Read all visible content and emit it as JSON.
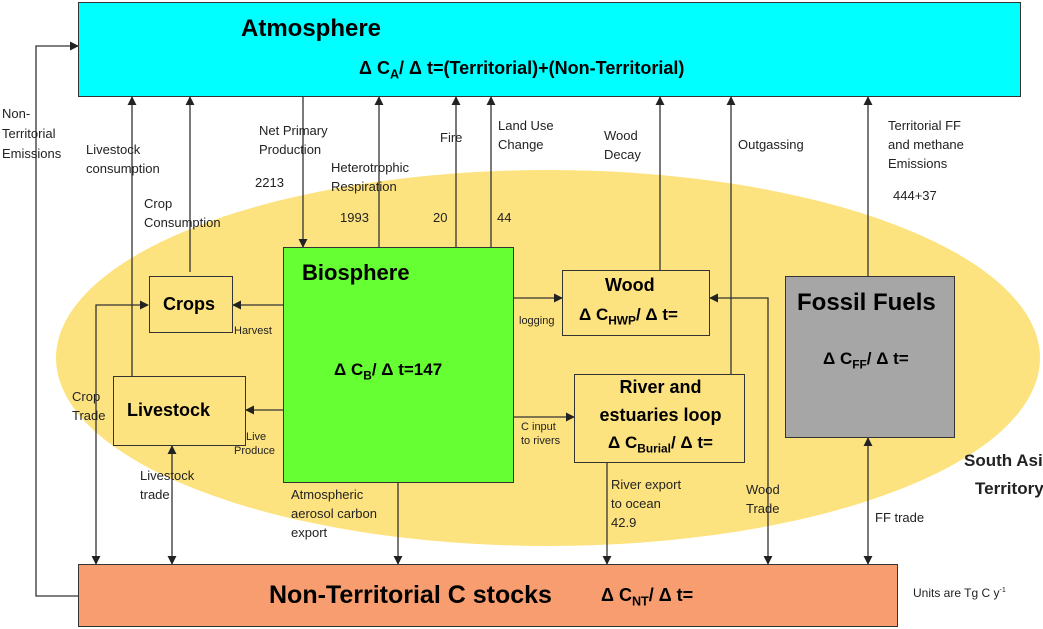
{
  "atmosphere": {
    "title": "Atmosphere",
    "delta": "Δ C",
    "sub": "A",
    "rest": "/ Δ t=(Territorial)+(Non-Territorial)"
  },
  "biosphere": {
    "title": "Biosphere",
    "delta": "Δ C",
    "sub": "B",
    "rest": "/ Δ t=147"
  },
  "crops": {
    "title": "Crops"
  },
  "livestock": {
    "title": "Livestock"
  },
  "wood": {
    "title": "Wood",
    "delta": "Δ C",
    "sub": "HWP",
    "rest": "/ Δ t="
  },
  "river": {
    "title_line1": "River and",
    "title_line2": "estuaries loop",
    "delta": "Δ C",
    "sub": "Burial",
    "rest": "/ Δ t="
  },
  "fossil": {
    "title": "Fossil Fuels",
    "delta": "Δ C",
    "sub": "FF",
    "rest": "/ Δ t="
  },
  "nonterritorial": {
    "title": "Non-Territorial C stocks",
    "delta": "Δ C",
    "sub": "NT",
    "rest": "/ Δ t="
  },
  "territory": {
    "line1": "South Asia",
    "line2": "Territory"
  },
  "units": {
    "text": "Units are Tg C y",
    "sup": "-1"
  },
  "flows": {
    "non_territorial_emissions": [
      "Non-",
      "Territorial",
      "Emissions"
    ],
    "livestock_consumption": [
      "Livestock",
      "consumption"
    ],
    "crop_consumption": [
      "Crop",
      "Consumption"
    ],
    "npp": [
      "Net Primary",
      "Production"
    ],
    "npp_value": "2213",
    "heterotrophic": [
      "Heterotrophic",
      "Respiration"
    ],
    "heterotrophic_value": "1993",
    "fire": "Fire",
    "fire_value": "20",
    "land_use": [
      "Land Use",
      "Change"
    ],
    "land_use_value": "44",
    "wood_decay": [
      "Wood",
      "Decay"
    ],
    "outgassing": "Outgassing",
    "territorial_ff": [
      "Territorial FF",
      "and methane",
      "Emissions"
    ],
    "territorial_ff_value": "444+37",
    "harvest": "Harvest",
    "logging": "logging",
    "live_produce": [
      "Live",
      "Produce"
    ],
    "c_input": [
      "C input",
      "to rivers"
    ],
    "crop_trade": [
      "Crop",
      "Trade"
    ],
    "livestock_trade": [
      "Livestock",
      "trade"
    ],
    "aerosol": [
      "Atmospheric",
      "aerosol carbon",
      "export"
    ],
    "river_export": [
      "River export",
      "to ocean"
    ],
    "river_export_value": "42.9",
    "wood_trade": [
      "Wood",
      "Trade"
    ],
    "ff_trade": "FF trade"
  },
  "colors": {
    "atmosphere": "#00ffff",
    "biosphere": "#66ff33",
    "territory": "#fde37f",
    "box_fill": "#fde37f",
    "fossil": "#a6a6a6",
    "nonterritorial": "#f79d6f"
  }
}
